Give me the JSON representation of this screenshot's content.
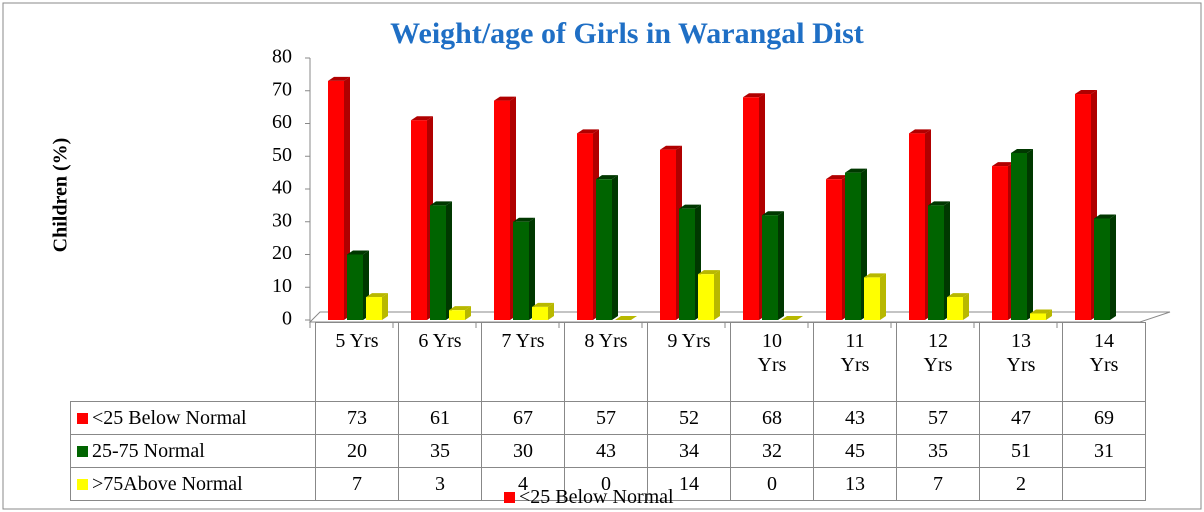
{
  "chart_data": {
    "type": "bar",
    "title": "Weight/age of  Girls in Warangal Dist",
    "y_label": "Children (%)",
    "categories": [
      "5 Yrs",
      "6 Yrs",
      "7 Yrs",
      "8 Yrs",
      "9 Yrs",
      "10 Yrs",
      "11 Yrs",
      "12 Yrs",
      "13 Yrs",
      "14 Yrs"
    ],
    "series": [
      {
        "name": "<25 Below Normal",
        "color": "#ff0000",
        "side": "#b00000",
        "values": [
          73,
          61,
          67,
          57,
          52,
          68,
          43,
          57,
          47,
          69
        ]
      },
      {
        "name": "25-75 Normal",
        "color": "#006400",
        "side": "#003800",
        "values": [
          20,
          35,
          30,
          43,
          34,
          32,
          45,
          35,
          51,
          31
        ]
      },
      {
        "name": ">75Above Normal",
        "color": "#ffff00",
        "side": "#b8b800",
        "values": [
          7,
          3,
          4,
          0,
          14,
          0,
          13,
          7,
          2,
          null
        ]
      }
    ],
    "ylim": [
      0,
      80
    ],
    "yticks": [
      0,
      10,
      20,
      30,
      40,
      50,
      60,
      70,
      80
    ],
    "grid": false,
    "data_table": true,
    "legend_overlay": {
      "series": 0
    }
  }
}
